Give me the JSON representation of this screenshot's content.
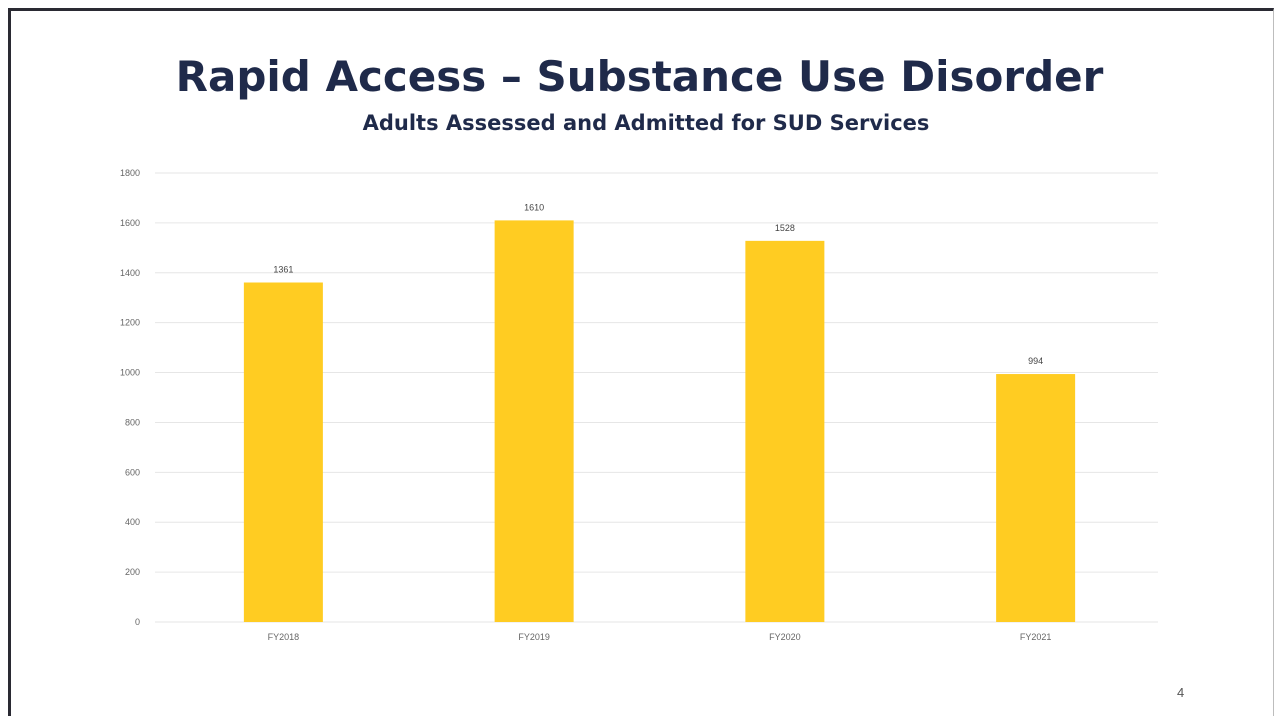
{
  "slide": {
    "title": "Rapid Access – Substance Use Disorder",
    "subtitle": "Adults Assessed and Admitted for SUD Services",
    "page_number": "4"
  },
  "colors": {
    "bar": "#FFCC22",
    "title": "#1f2a4a",
    "gridline": "#e6e6e6",
    "axis_text": "#666666"
  },
  "chart_data": {
    "type": "bar",
    "title": "Adults Assessed and Admitted for SUD Services",
    "categories": [
      "FY2018",
      "FY2019",
      "FY2020",
      "FY2021"
    ],
    "values": [
      1361,
      1610,
      1528,
      994
    ],
    "data_labels": [
      "1361",
      "1610",
      "1528",
      "994"
    ],
    "xlabel": "",
    "ylabel": "",
    "ylim": [
      0,
      1800
    ],
    "yticks": [
      0,
      200,
      400,
      600,
      800,
      1000,
      1200,
      1400,
      1600,
      1800
    ],
    "ytick_labels": [
      "0",
      "200",
      "400",
      "600",
      "800",
      "1000",
      "1200",
      "1400",
      "1600",
      "1800"
    ],
    "grid": true,
    "legend": "none"
  }
}
